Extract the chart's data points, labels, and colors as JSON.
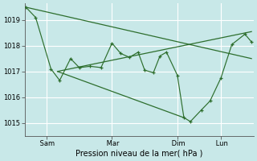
{
  "bg_color": "#c8e8e8",
  "grid_color": "#a8d8d8",
  "line_color": "#2d6e2d",
  "xlabel": "Pression niveau de la mer( hPa )",
  "ylim": [
    1014.5,
    1019.65
  ],
  "yticks": [
    1015,
    1016,
    1017,
    1018,
    1019
  ],
  "xtick_labels": [
    " Sam",
    " Mar",
    " Dim",
    " Lun"
  ],
  "xtick_positions": [
    1,
    4,
    7,
    9
  ],
  "xmin": 0,
  "xmax": 10.5,
  "main_x": [
    0.05,
    0.5,
    1.2,
    1.6,
    2.1,
    2.5,
    3.0,
    3.5,
    4.0,
    4.4,
    4.8,
    5.2,
    5.5,
    5.9,
    6.2,
    6.5,
    7.0,
    7.3,
    7.6,
    8.1,
    8.5,
    9.0,
    9.5,
    10.1,
    10.4
  ],
  "main_y": [
    1019.5,
    1019.1,
    1017.1,
    1016.65,
    1017.5,
    1017.15,
    1017.2,
    1017.15,
    1018.1,
    1017.7,
    1017.55,
    1017.75,
    1017.05,
    1016.95,
    1017.6,
    1017.75,
    1016.85,
    1015.2,
    1015.05,
    1015.5,
    1015.85,
    1016.75,
    1018.05,
    1018.45,
    1018.15
  ],
  "trend1_x": [
    0.05,
    10.4
  ],
  "trend1_y": [
    1019.5,
    1017.5
  ],
  "trend2_x": [
    1.5,
    10.4
  ],
  "trend2_y": [
    1017.0,
    1018.55
  ],
  "trend3_x": [
    1.5,
    7.3
  ],
  "trend3_y": [
    1017.0,
    1015.2
  ]
}
